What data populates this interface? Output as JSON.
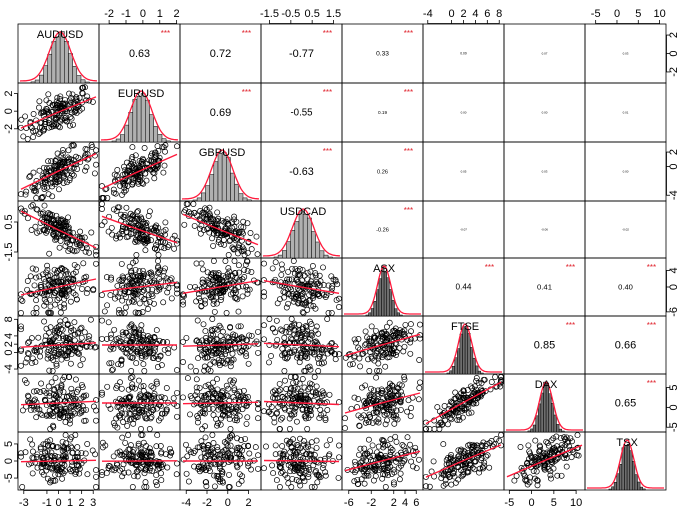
{
  "chart_data": {
    "type": "scatter",
    "kind": "correlation-matrix (chart.Correlation)",
    "variables": [
      "AUDUSD",
      "EURUSD",
      "GBPUSD",
      "USDCAD",
      "ASX",
      "FTSE",
      "DAX",
      "TSX"
    ],
    "colors": {
      "points": "#000000",
      "smooth": "#ff1a3c",
      "density": "#ff1a3c",
      "bars": "#b0b0b0",
      "stars": "#e0202a",
      "frame": "#000000"
    },
    "correlations": [
      {
        "row": 1,
        "col": 2,
        "value": "0.63",
        "stars": "***"
      },
      {
        "row": 1,
        "col": 3,
        "value": "0.72",
        "stars": "***"
      },
      {
        "row": 1,
        "col": 4,
        "value": "-0.77",
        "stars": "***"
      },
      {
        "row": 1,
        "col": 5,
        "value": "0.33",
        "stars": "***"
      },
      {
        "row": 1,
        "col": 6,
        "value": "0.09",
        "stars": ""
      },
      {
        "row": 1,
        "col": 7,
        "value": "0.07",
        "stars": ""
      },
      {
        "row": 1,
        "col": 8,
        "value": "0.03",
        "stars": ""
      },
      {
        "row": 2,
        "col": 3,
        "value": "0.69",
        "stars": "***"
      },
      {
        "row": 2,
        "col": 4,
        "value": "-0.55",
        "stars": "***"
      },
      {
        "row": 2,
        "col": 5,
        "value": "0.19",
        "stars": "***"
      },
      {
        "row": 2,
        "col": 6,
        "value": "0.00",
        "stars": ""
      },
      {
        "row": 2,
        "col": 7,
        "value": "0.00",
        "stars": ""
      },
      {
        "row": 2,
        "col": 8,
        "value": "0.01",
        "stars": ""
      },
      {
        "row": 3,
        "col": 4,
        "value": "-0.63",
        "stars": "***"
      },
      {
        "row": 3,
        "col": 5,
        "value": "0.26",
        "stars": "***"
      },
      {
        "row": 3,
        "col": 6,
        "value": "0.05",
        "stars": ""
      },
      {
        "row": 3,
        "col": 7,
        "value": "0.03",
        "stars": ""
      },
      {
        "row": 3,
        "col": 8,
        "value": "0.00",
        "stars": ""
      },
      {
        "row": 4,
        "col": 5,
        "value": "-0.26",
        "stars": "***"
      },
      {
        "row": 4,
        "col": 6,
        "value": "-0.07",
        "stars": ""
      },
      {
        "row": 4,
        "col": 7,
        "value": "-0.06",
        "stars": ""
      },
      {
        "row": 4,
        "col": 8,
        "value": "-0.02",
        "stars": ""
      },
      {
        "row": 5,
        "col": 6,
        "value": "0.44",
        "stars": "***"
      },
      {
        "row": 5,
        "col": 7,
        "value": "0.41",
        "stars": "***"
      },
      {
        "row": 5,
        "col": 8,
        "value": "0.40",
        "stars": "***"
      },
      {
        "row": 6,
        "col": 7,
        "value": "0.85",
        "stars": "***"
      },
      {
        "row": 6,
        "col": 8,
        "value": "0.66",
        "stars": "***"
      },
      {
        "row": 7,
        "col": 8,
        "value": "0.65",
        "stars": "***"
      }
    ],
    "axes": {
      "top": [
        {
          "col": 2,
          "ticks": [
            -2,
            -1,
            0,
            1,
            2
          ],
          "range": [
            -2.6,
            2.2
          ]
        },
        {
          "col": 4,
          "ticks": [
            -1.5,
            -0.5,
            0.5,
            1.5
          ],
          "range": [
            -1.9,
            1.9
          ]
        },
        {
          "col": 6,
          "ticks": [
            -4,
            0,
            2,
            4,
            6,
            8
          ],
          "range": [
            -4.8,
            8.8
          ]
        },
        {
          "col": 8,
          "ticks": [
            -5,
            0,
            5,
            10
          ],
          "range": [
            -7.5,
            11.5
          ]
        }
      ],
      "bottom": [
        {
          "col": 1,
          "ticks": [
            -3,
            -1,
            0,
            1,
            2,
            3
          ],
          "range": [
            -3.5,
            3.5
          ]
        },
        {
          "col": 3,
          "ticks": [
            -4,
            -2,
            0,
            2
          ],
          "range": [
            -4.6,
            3.2
          ]
        },
        {
          "col": 5,
          "ticks": [
            -6,
            -2,
            2,
            4,
            6
          ],
          "range": [
            -7.2,
            7.2
          ]
        },
        {
          "col": 7,
          "ticks": [
            -5,
            0,
            5,
            10
          ],
          "range": [
            -6.2,
            12
          ]
        }
      ],
      "left": [
        {
          "row": 2,
          "ticks": [
            -2,
            0,
            2
          ],
          "range": [
            -3.5,
            3.2
          ]
        },
        {
          "row": 4,
          "ticks": [
            -1.5,
            0.5
          ],
          "range": [
            -1.9,
            1.9
          ]
        },
        {
          "row": 6,
          "ticks": [
            -4,
            0,
            2,
            4,
            8
          ],
          "range": [
            -5.2,
            8.8
          ]
        },
        {
          "row": 8,
          "ticks": [
            -5,
            0,
            5
          ],
          "range": [
            -8.5,
            8.5
          ]
        }
      ],
      "right": [
        {
          "row": 1,
          "ticks": [
            -2,
            0,
            2
          ],
          "range": [
            -3.2,
            3.2
          ]
        },
        {
          "row": 3,
          "ticks": [
            -4,
            0,
            2
          ],
          "range": [
            -4.8,
            3.4
          ]
        },
        {
          "row": 5,
          "ticks": [
            -6,
            0,
            4
          ],
          "range": [
            -7,
            7
          ]
        },
        {
          "row": 7,
          "ticks": [
            -5,
            0,
            5
          ],
          "range": [
            -6.2,
            8.4
          ]
        }
      ]
    }
  }
}
